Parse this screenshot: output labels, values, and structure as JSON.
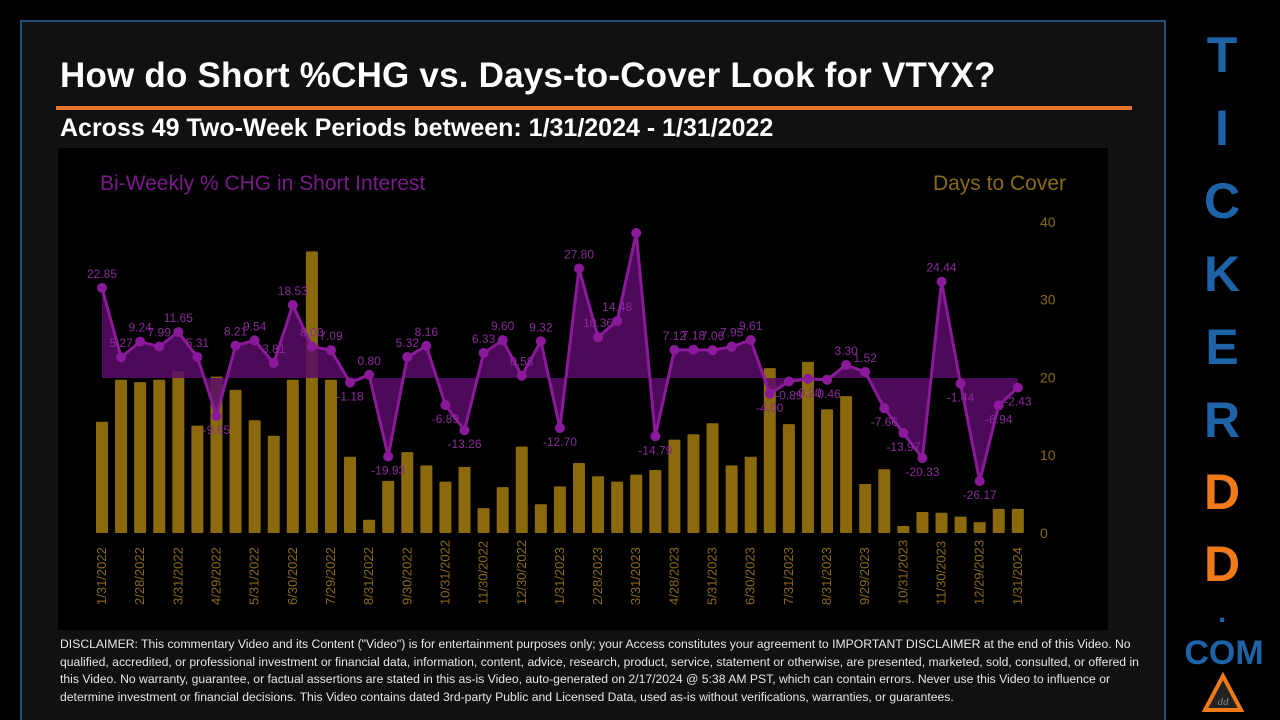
{
  "header": {
    "title": "How do Short %CHG vs. Days-to-Cover Look for VTYX?",
    "subtitle": "Across 49 Two-Week Periods between: 1/31/2024 - 1/31/2022"
  },
  "colors": {
    "accent_rule": "#e8732a",
    "line_series": "#8b1a9a",
    "bar_series": "#8a6a0c",
    "brand_blue": "#1e63a8",
    "brand_orange": "#f07a18"
  },
  "disclaimer": "DISCLAIMER: This commentary Video and its Content (\"Video\") is for entertainment purposes only; your Access constitutes your agreement to IMPORTANT DISCLAIMER at the end of this Video. No qualified, accredited, or professional investment or financial data, information, content, advice, research, product, service, statement or otherwise, are presented, marketed, sold, consulted, or offered in this Video. No warranty, guarantee, or factual assertions are stated in this as-is Video, auto-generated on 2/17/2024 @ 5:38 AM PST, which can contain errors. Never use this Video to influence or determine investment or financial decisions. This Video contains dated 3rd-party Public and Licensed Data, used as-is without verifications, warranties, or guarantees.",
  "brand": {
    "letters": [
      "T",
      "I",
      "C",
      "K",
      "E",
      "R",
      "D",
      "D"
    ],
    "dot": ".",
    "com": "COM"
  },
  "chart_data": {
    "type": "bar+line",
    "title": "How do Short %CHG vs. Days-to-Cover Look for VTYX?",
    "subtitle": "Across 49 Two-Week Periods between: 1/31/2024 - 1/31/2022",
    "legend": {
      "left": "Bi-Weekly  % CHG in Short Interest",
      "right": "Days to Cover"
    },
    "x_tick_labels": [
      "1/31/2022",
      "2/28/2022",
      "3/31/2022",
      "4/29/2022",
      "5/31/2022",
      "6/30/2022",
      "7/29/2022",
      "8/31/2022",
      "9/30/2022",
      "10/31/2022",
      "11/30/2022",
      "12/30/2022",
      "1/31/2023",
      "2/28/2023",
      "3/31/2023",
      "4/28/2023",
      "5/31/2023",
      "6/30/2023",
      "7/31/2023",
      "8/31/2023",
      "9/29/2023",
      "10/31/2023",
      "11/30/2023",
      "12/29/2023",
      "1/31/2024"
    ],
    "y_right_ticks": [
      0,
      10,
      20,
      30,
      40
    ],
    "y_right_range": [
      0,
      40
    ],
    "y_left_baseline": 0,
    "grid": false,
    "n_periods": 49,
    "series": [
      {
        "name": "Bi-Weekly % CHG in Short Interest",
        "type": "area-line",
        "axis": "left",
        "values": [
          22.85,
          5.27,
          9.24,
          7.99,
          11.65,
          5.31,
          -9.65,
          8.21,
          9.54,
          3.81,
          18.53,
          8.0,
          7.09,
          -1.18,
          0.8,
          -19.93,
          5.32,
          8.16,
          -6.89,
          -13.26,
          6.33,
          9.6,
          0.58,
          9.32,
          -12.7,
          27.8,
          10.36,
          14.48,
          36.8,
          -14.79,
          7.12,
          7.18,
          7.06,
          7.95,
          9.61,
          -4.0,
          -0.89,
          -0.2,
          -0.46,
          3.3,
          1.52,
          -7.66,
          -13.97,
          -20.33,
          24.44,
          -1.44,
          -26.17,
          -6.94,
          -2.43
        ],
        "labels": [
          "22.85",
          "5.27",
          "9.24",
          "7.99",
          "11.65",
          "5.31",
          "-9.65",
          "8.21",
          "9.54",
          "3.81",
          "18.53",
          "8.00",
          "7.09",
          "-1.18",
          "0.80",
          "-19.93",
          "5.32",
          "8.16",
          "-6.89",
          "-13.26",
          "6.33",
          "9.60",
          "0.58",
          "9.32",
          "-12.70",
          "27.80",
          "10.36",
          "14.48",
          "",
          "-14.79",
          "7.12",
          "7.18",
          "7.06",
          "7.95",
          "9.61",
          "-4.00",
          "-0.89",
          "-0.20",
          "-0.46",
          "3.30",
          "1.52",
          "-7.66",
          "-13.97",
          "-20.33",
          "24.44",
          "-1.44",
          "-26.17",
          "-6.94",
          "-2.43"
        ]
      },
      {
        "name": "Days to Cover",
        "type": "bar",
        "axis": "right",
        "values": [
          14.3,
          19.7,
          19.4,
          19.7,
          20.8,
          13.8,
          20.1,
          18.4,
          14.5,
          12.5,
          19.7,
          36.2,
          19.7,
          9.8,
          1.7,
          6.7,
          10.4,
          8.7,
          6.6,
          8.5,
          3.2,
          5.9,
          11.1,
          3.7,
          6.0,
          9.0,
          7.3,
          6.6,
          7.5,
          8.1,
          12.0,
          12.7,
          14.1,
          8.7,
          9.8,
          21.2,
          14.0,
          22.0,
          15.9,
          17.6,
          6.3,
          8.2,
          0.9,
          2.7,
          2.6,
          2.1,
          1.4,
          3.1,
          3.1
        ]
      }
    ]
  }
}
